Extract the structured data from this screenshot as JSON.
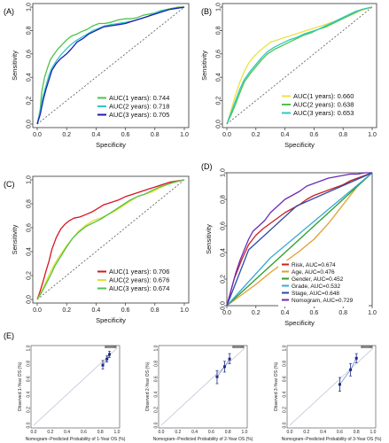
{
  "chart_data": [
    {
      "panel": "(A)",
      "type": "line",
      "xlabel": "Specificity",
      "ylabel": "Sensitivity",
      "xticks": [
        "0.0",
        "0.2",
        "0.4",
        "0.6",
        "0.8",
        "1.0"
      ],
      "yticks": [
        "0.0",
        "0.2",
        "0.4",
        "0.6",
        "0.8",
        "1.0"
      ],
      "xlim": [
        0,
        1
      ],
      "ylim": [
        0,
        1
      ],
      "legend_position": "bottom-right",
      "series": [
        {
          "name": "AUC(1 years): 0.744",
          "color": "#4fc24a",
          "x": [
            0,
            0.02,
            0.03,
            0.05,
            0.07,
            0.09,
            0.11,
            0.14,
            0.17,
            0.2,
            0.23,
            0.27,
            0.3,
            0.34,
            0.38,
            0.42,
            0.46,
            0.5,
            0.55,
            0.6,
            0.64,
            0.68,
            0.72,
            0.76,
            0.8,
            0.84,
            0.88,
            0.92,
            0.96,
            1.0
          ],
          "y": [
            0,
            0.12,
            0.27,
            0.4,
            0.48,
            0.55,
            0.59,
            0.64,
            0.68,
            0.72,
            0.75,
            0.77,
            0.79,
            0.81,
            0.84,
            0.86,
            0.86,
            0.87,
            0.89,
            0.9,
            0.9,
            0.91,
            0.93,
            0.94,
            0.95,
            0.97,
            0.98,
            0.99,
            1.0,
            1.0
          ]
        },
        {
          "name": "AUC(2 years): 0.718",
          "color": "#2ec9c1",
          "x": [
            0,
            0.02,
            0.04,
            0.06,
            0.08,
            0.1,
            0.13,
            0.16,
            0.19,
            0.22,
            0.26,
            0.3,
            0.34,
            0.38,
            0.42,
            0.46,
            0.5,
            0.55,
            0.6,
            0.65,
            0.7,
            0.75,
            0.8,
            0.85,
            0.9,
            0.95,
            1.0
          ],
          "y": [
            0,
            0.12,
            0.24,
            0.33,
            0.42,
            0.48,
            0.54,
            0.59,
            0.63,
            0.67,
            0.71,
            0.74,
            0.77,
            0.8,
            0.82,
            0.84,
            0.85,
            0.86,
            0.87,
            0.88,
            0.9,
            0.92,
            0.95,
            0.97,
            0.98,
            0.99,
            1.0
          ]
        },
        {
          "name": "AUC(3 years): 0.705",
          "color": "#1c1cb2",
          "x": [
            0,
            0.02,
            0.04,
            0.06,
            0.08,
            0.1,
            0.13,
            0.16,
            0.2,
            0.23,
            0.27,
            0.31,
            0.35,
            0.4,
            0.45,
            0.5,
            0.55,
            0.6,
            0.65,
            0.7,
            0.75,
            0.8,
            0.85,
            0.9,
            0.95,
            1.0
          ],
          "y": [
            0,
            0.08,
            0.2,
            0.3,
            0.38,
            0.46,
            0.52,
            0.56,
            0.6,
            0.64,
            0.7,
            0.73,
            0.77,
            0.8,
            0.83,
            0.84,
            0.85,
            0.86,
            0.88,
            0.9,
            0.92,
            0.94,
            0.96,
            0.98,
            0.99,
            1.0
          ]
        }
      ]
    },
    {
      "panel": "(B)",
      "type": "line",
      "xlabel": "Specificity",
      "ylabel": "Sensitivity",
      "xticks": [
        "0.0",
        "0.2",
        "0.4",
        "0.6",
        "0.8",
        "1.0"
      ],
      "yticks": [
        "0.0",
        "0.2",
        "0.4",
        "0.6",
        "0.8",
        "1.0"
      ],
      "xlim": [
        0,
        1
      ],
      "ylim": [
        0,
        1
      ],
      "legend_position": "bottom-right",
      "series": [
        {
          "name": "AUC(1 years): 0.660",
          "color": "#f0e040",
          "x": [
            0,
            0.03,
            0.06,
            0.09,
            0.12,
            0.15,
            0.18,
            0.22,
            0.26,
            0.3,
            0.35,
            0.4,
            0.45,
            0.5,
            0.55,
            0.6,
            0.65,
            0.7,
            0.75,
            0.8,
            0.85,
            0.9,
            0.95,
            1.0
          ],
          "y": [
            0,
            0.12,
            0.25,
            0.36,
            0.45,
            0.52,
            0.57,
            0.62,
            0.66,
            0.7,
            0.72,
            0.74,
            0.76,
            0.78,
            0.8,
            0.82,
            0.84,
            0.86,
            0.88,
            0.91,
            0.93,
            0.96,
            0.98,
            1.0
          ]
        },
        {
          "name": "AUC(2 years): 0.638",
          "color": "#4fc24a",
          "x": [
            0,
            0.03,
            0.06,
            0.09,
            0.12,
            0.16,
            0.2,
            0.24,
            0.28,
            0.33,
            0.38,
            0.43,
            0.48,
            0.53,
            0.58,
            0.63,
            0.68,
            0.73,
            0.78,
            0.83,
            0.88,
            0.93,
            1.0
          ],
          "y": [
            0,
            0.08,
            0.17,
            0.27,
            0.36,
            0.43,
            0.49,
            0.55,
            0.6,
            0.64,
            0.67,
            0.7,
            0.73,
            0.76,
            0.78,
            0.81,
            0.83,
            0.86,
            0.89,
            0.92,
            0.95,
            0.98,
            1.0
          ]
        },
        {
          "name": "AUC(3 years): 0.653",
          "color": "#2ec9c1",
          "x": [
            0,
            0.03,
            0.06,
            0.09,
            0.12,
            0.16,
            0.2,
            0.24,
            0.28,
            0.33,
            0.38,
            0.43,
            0.48,
            0.53,
            0.58,
            0.63,
            0.68,
            0.73,
            0.78,
            0.83,
            0.88,
            0.93,
            1.0
          ],
          "y": [
            0,
            0.1,
            0.2,
            0.3,
            0.38,
            0.45,
            0.51,
            0.57,
            0.62,
            0.66,
            0.69,
            0.72,
            0.74,
            0.77,
            0.79,
            0.81,
            0.84,
            0.87,
            0.9,
            0.93,
            0.96,
            0.98,
            1.0
          ]
        }
      ]
    },
    {
      "panel": "(C)",
      "type": "line",
      "xlabel": "Specificity",
      "ylabel": "Sensitivity",
      "xticks": [
        "0.0",
        "0.2",
        "0.4",
        "0.6",
        "0.8",
        "1.0"
      ],
      "yticks": [
        "0.0",
        "0.2",
        "0.4",
        "0.6",
        "0.8",
        "1.0"
      ],
      "xlim": [
        0,
        1
      ],
      "ylim": [
        0,
        1
      ],
      "legend_position": "bottom-right",
      "series": [
        {
          "name": "AUC(1 years): 0.706",
          "color": "#d8141e",
          "x": [
            0,
            0.02,
            0.04,
            0.06,
            0.08,
            0.1,
            0.13,
            0.16,
            0.19,
            0.22,
            0.25,
            0.29,
            0.33,
            0.37,
            0.41,
            0.45,
            0.5,
            0.55,
            0.6,
            0.65,
            0.7,
            0.75,
            0.8,
            0.85,
            0.9,
            0.95,
            1.0
          ],
          "y": [
            0,
            0.07,
            0.15,
            0.24,
            0.32,
            0.42,
            0.52,
            0.59,
            0.63,
            0.66,
            0.68,
            0.69,
            0.71,
            0.73,
            0.76,
            0.79,
            0.81,
            0.83,
            0.86,
            0.88,
            0.9,
            0.92,
            0.94,
            0.96,
            0.98,
            0.99,
            1.0
          ]
        },
        {
          "name": "AUC(2 years): 0.676",
          "color": "#e2e02e",
          "x": [
            0,
            0.03,
            0.06,
            0.09,
            0.12,
            0.16,
            0.2,
            0.24,
            0.28,
            0.33,
            0.38,
            0.43,
            0.48,
            0.53,
            0.58,
            0.63,
            0.68,
            0.73,
            0.78,
            0.83,
            0.88,
            0.93,
            1.0
          ],
          "y": [
            0,
            0.07,
            0.15,
            0.23,
            0.3,
            0.38,
            0.45,
            0.51,
            0.57,
            0.62,
            0.66,
            0.68,
            0.71,
            0.74,
            0.78,
            0.82,
            0.86,
            0.88,
            0.9,
            0.93,
            0.96,
            0.98,
            1.0
          ]
        },
        {
          "name": "AUC(3 years): 0.674",
          "color": "#4fc24a",
          "x": [
            0,
            0.03,
            0.06,
            0.09,
            0.12,
            0.16,
            0.2,
            0.24,
            0.28,
            0.33,
            0.38,
            0.43,
            0.48,
            0.53,
            0.58,
            0.63,
            0.68,
            0.73,
            0.78,
            0.83,
            0.88,
            0.93,
            1.0
          ],
          "y": [
            0,
            0.06,
            0.13,
            0.2,
            0.28,
            0.36,
            0.44,
            0.51,
            0.56,
            0.61,
            0.64,
            0.67,
            0.71,
            0.75,
            0.79,
            0.83,
            0.86,
            0.88,
            0.91,
            0.94,
            0.96,
            0.98,
            1.0
          ]
        }
      ]
    },
    {
      "panel": "(D)",
      "type": "line",
      "xlabel": "Specificity",
      "ylabel": "Sensitivity",
      "xticks": [
        "0.0",
        "0.2",
        "0.4",
        "0.6",
        "0.8",
        "1.0"
      ],
      "yticks": [
        "0.0",
        "0.2",
        "0.4",
        "0.6",
        "0.8",
        "1.0"
      ],
      "xlim": [
        0,
        1
      ],
      "ylim": [
        0,
        1
      ],
      "legend_position": "bottom-right",
      "grid": false,
      "series": [
        {
          "name": "Risk, AUC=0.674",
          "color": "#cc1f1f",
          "x": [
            0,
            0.05,
            0.1,
            0.15,
            0.2,
            0.25,
            0.3,
            0.35,
            0.4,
            0.45,
            0.5,
            0.55,
            0.6,
            0.65,
            0.7,
            0.75,
            0.8,
            0.85,
            0.9,
            0.95,
            1.0
          ],
          "y": [
            0,
            0.2,
            0.34,
            0.46,
            0.53,
            0.58,
            0.62,
            0.66,
            0.7,
            0.73,
            0.76,
            0.8,
            0.83,
            0.85,
            0.87,
            0.89,
            0.91,
            0.94,
            0.96,
            0.98,
            1.0
          ]
        },
        {
          "name": "Age, AUC=0.476",
          "color": "#e0a030",
          "x": [
            0,
            0.1,
            0.2,
            0.3,
            0.4,
            0.5,
            0.6,
            0.7,
            0.8,
            0.9,
            1.0
          ],
          "y": [
            0,
            0.08,
            0.16,
            0.25,
            0.33,
            0.41,
            0.5,
            0.62,
            0.76,
            0.9,
            1.0
          ]
        },
        {
          "name": "Gender, AUC=0.452",
          "color": "#2e9e2e",
          "x": [
            0,
            0.42,
            1.0
          ],
          "y": [
            0,
            0.42,
            1.0
          ]
        },
        {
          "name": "Grade, AUC=0.532",
          "color": "#3aaad6",
          "x": [
            0,
            0.3,
            1.0
          ],
          "y": [
            0,
            0.36,
            1.0
          ]
        },
        {
          "name": "Stage, AUC=0.648",
          "color": "#2b4aa8",
          "x": [
            0,
            0.15,
            0.48,
            1.0
          ],
          "y": [
            0,
            0.42,
            0.75,
            1.0
          ]
        },
        {
          "name": "Nomogram, AUC=0.729",
          "color": "#6a2bb8",
          "x": [
            0,
            0.03,
            0.06,
            0.09,
            0.12,
            0.15,
            0.18,
            0.22,
            0.26,
            0.3,
            0.35,
            0.4,
            0.45,
            0.5,
            0.55,
            0.6,
            0.65,
            0.7,
            0.75,
            0.8,
            0.85,
            0.9,
            0.95,
            1.0
          ],
          "y": [
            0,
            0.12,
            0.24,
            0.34,
            0.42,
            0.5,
            0.56,
            0.6,
            0.64,
            0.7,
            0.75,
            0.8,
            0.83,
            0.86,
            0.9,
            0.92,
            0.94,
            0.96,
            0.97,
            0.98,
            0.99,
            0.99,
            1.0,
            1.0
          ]
        }
      ]
    },
    {
      "panel": "(E)",
      "type": "scatter",
      "subplot": 1,
      "xlabel": "Nomogram−Predicted Probability of 1-Year OS (%)",
      "ylabel": "Observed 1-Year OS (%)",
      "ticks": [
        "0.0",
        "0.2",
        "0.4",
        "0.6",
        "0.8",
        "1.0"
      ],
      "xlim": [
        0,
        1
      ],
      "ylim": [
        0,
        1
      ],
      "points": [
        {
          "x": 0.83,
          "y": 0.78,
          "lo": 0.73,
          "hi": 0.84
        },
        {
          "x": 0.88,
          "y": 0.86,
          "lo": 0.82,
          "hi": 0.9
        },
        {
          "x": 0.91,
          "y": 0.92,
          "lo": 0.88,
          "hi": 0.96
        }
      ]
    },
    {
      "panel": "(E)",
      "type": "scatter",
      "subplot": 2,
      "xlabel": "Nomogram−Predicted Probability of 2-Year OS (%)",
      "ylabel": "Observed 2-Year OS (%)",
      "ticks": [
        "0.0",
        "0.2",
        "0.4",
        "0.6",
        "0.8",
        "1.0"
      ],
      "xlim": [
        0,
        1
      ],
      "ylim": [
        0,
        1
      ],
      "points": [
        {
          "x": 0.67,
          "y": 0.63,
          "lo": 0.54,
          "hi": 0.71
        },
        {
          "x": 0.76,
          "y": 0.76,
          "lo": 0.69,
          "hi": 0.83
        },
        {
          "x": 0.82,
          "y": 0.86,
          "lo": 0.8,
          "hi": 0.93
        }
      ]
    },
    {
      "panel": "(E)",
      "type": "scatter",
      "subplot": 3,
      "xlabel": "Nomogram−Predicted Probability of 3-Year OS (%)",
      "ylabel": "Observed 3-Year OS (%)",
      "ticks": [
        "0.0",
        "0.2",
        "0.4",
        "0.6",
        "0.8",
        "1.0"
      ],
      "xlim": [
        0,
        1
      ],
      "ylim": [
        0,
        1
      ],
      "points": [
        {
          "x": 0.6,
          "y": 0.53,
          "lo": 0.44,
          "hi": 0.62
        },
        {
          "x": 0.73,
          "y": 0.72,
          "lo": 0.64,
          "hi": 0.8
        },
        {
          "x": 0.8,
          "y": 0.87,
          "lo": 0.81,
          "hi": 0.93
        }
      ]
    }
  ]
}
